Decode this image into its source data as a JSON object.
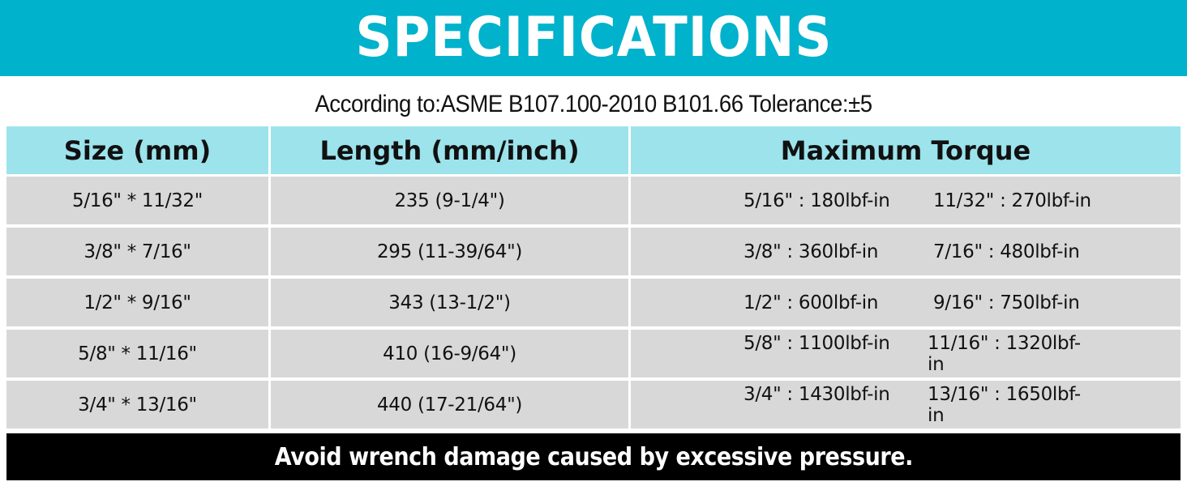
{
  "title": "SPECIFICATIONS",
  "subtitle": "According to:ASME B107.100-2010 B101.66 Tolerance:±5",
  "table": {
    "headers": [
      "Size (mm)",
      "Length (mm/inch)",
      "Maximum Torque"
    ],
    "rows": [
      {
        "size": "5/16\" * 11/32\"",
        "length": "235 (9-1/4\")",
        "torque_a": "5/16\" : 180lbf-in",
        "torque_b": "11/32\" : 270lbf-in"
      },
      {
        "size": "3/8\" * 7/16\"",
        "length": "295 (11-39/64\")",
        "torque_a": "3/8\" : 360lbf-in",
        "torque_b": "7/16\" : 480lbf-in"
      },
      {
        "size": "1/2\" * 9/16\"",
        "length": "343 (13-1/2\")",
        "torque_a": "1/2\" : 600lbf-in",
        "torque_b": "9/16\" : 750lbf-in"
      },
      {
        "size": "5/8\" * 11/16\"",
        "length": "410 (16-9/64\")",
        "torque_a": "5/8\" : 1100lbf-in",
        "torque_b": "11/16\" : 1320lbf-in"
      },
      {
        "size": "3/4\" * 13/16\"",
        "length": "440 (17-21/64\")",
        "torque_a": "3/4\" : 1430lbf-in",
        "torque_b": "13/16\" : 1650lbf-in"
      }
    ]
  },
  "footer": "Avoid wrench damage caused by excessive pressure.",
  "colors": {
    "banner": "#00b2cc",
    "header_cells": "#9ce3ec",
    "data_cells": "#d8d8d8",
    "footer": "#000000"
  }
}
